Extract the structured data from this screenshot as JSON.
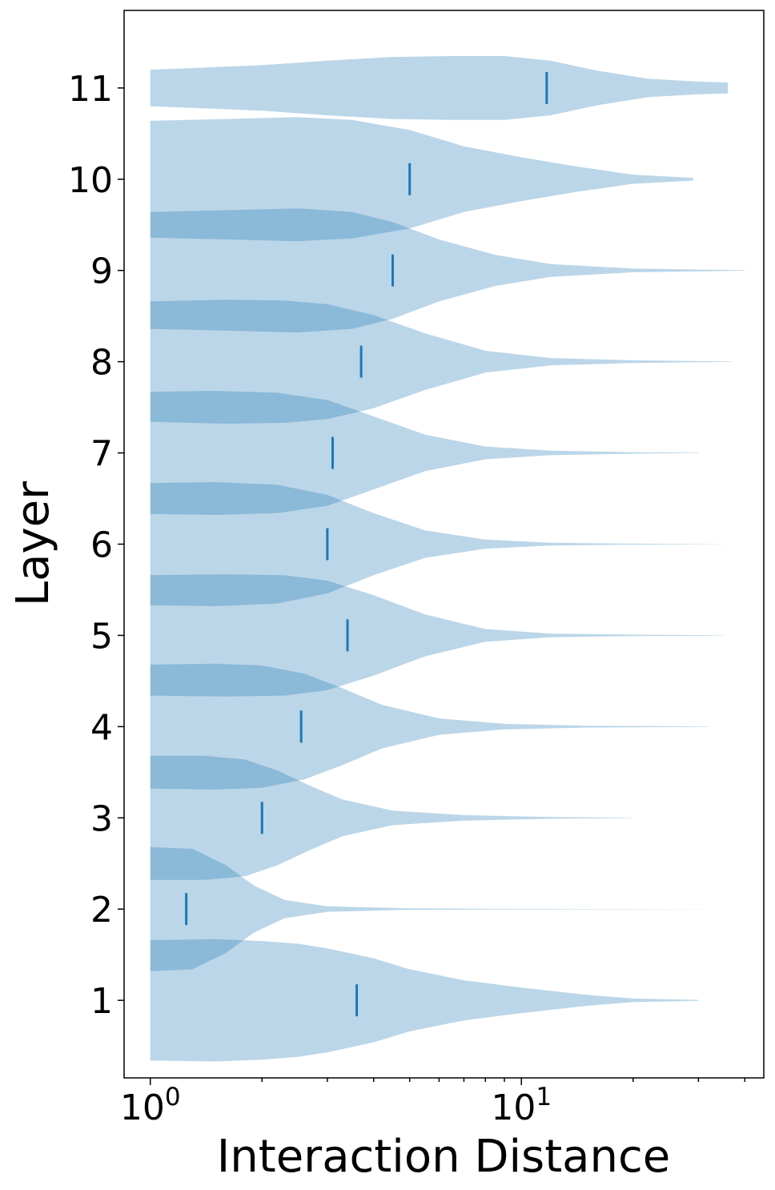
{
  "chart_data": {
    "type": "violin",
    "orientation": "horizontal",
    "xlabel": "Interaction Distance",
    "ylabel": "Layer",
    "x_scale": "log",
    "xlim": [
      0.85,
      45
    ],
    "ylim": [
      0.15,
      11.85
    ],
    "x_ticks": [
      {
        "value": 1,
        "base": "10",
        "exp": "0"
      },
      {
        "value": 10,
        "base": "10",
        "exp": "1"
      }
    ],
    "y_ticks": [
      "1",
      "2",
      "3",
      "4",
      "5",
      "6",
      "7",
      "8",
      "9",
      "10",
      "11"
    ],
    "color": "#1f77b4",
    "series": [
      {
        "layer": 1,
        "min": 1,
        "max": 30,
        "median": 3.6,
        "profile": [
          [
            1,
            0.66
          ],
          [
            1.5,
            0.67
          ],
          [
            2,
            0.65
          ],
          [
            2.5,
            0.62
          ],
          [
            3,
            0.57
          ],
          [
            4,
            0.46
          ],
          [
            5,
            0.34
          ],
          [
            7,
            0.22
          ],
          [
            10,
            0.14
          ],
          [
            15,
            0.06
          ],
          [
            20,
            0.02
          ],
          [
            30,
            0.005
          ]
        ]
      },
      {
        "layer": 2,
        "min": 1,
        "max": 31,
        "median": 1.25,
        "profile": [
          [
            1,
            0.68
          ],
          [
            1.3,
            0.66
          ],
          [
            1.6,
            0.48
          ],
          [
            1.9,
            0.26
          ],
          [
            2.3,
            0.1
          ],
          [
            3,
            0.03
          ],
          [
            5,
            0.008
          ],
          [
            10,
            0.003
          ],
          [
            31,
            0.001
          ]
        ]
      },
      {
        "layer": 3,
        "min": 1,
        "max": 20,
        "median": 2.0,
        "profile": [
          [
            1,
            0.68
          ],
          [
            1.4,
            0.68
          ],
          [
            1.8,
            0.64
          ],
          [
            2.2,
            0.52
          ],
          [
            2.7,
            0.35
          ],
          [
            3.3,
            0.2
          ],
          [
            4.5,
            0.08
          ],
          [
            7,
            0.03
          ],
          [
            12,
            0.01
          ],
          [
            20,
            0.002
          ]
        ]
      },
      {
        "layer": 4,
        "min": 1,
        "max": 32,
        "median": 2.55,
        "profile": [
          [
            1,
            0.68
          ],
          [
            1.5,
            0.69
          ],
          [
            2,
            0.67
          ],
          [
            2.6,
            0.58
          ],
          [
            3.3,
            0.42
          ],
          [
            4.2,
            0.24
          ],
          [
            6,
            0.09
          ],
          [
            9,
            0.03
          ],
          [
            15,
            0.01
          ],
          [
            32,
            0.002
          ]
        ]
      },
      {
        "layer": 5,
        "min": 1,
        "max": 35,
        "median": 3.4,
        "profile": [
          [
            1,
            0.66
          ],
          [
            1.6,
            0.67
          ],
          [
            2.3,
            0.66
          ],
          [
            3,
            0.6
          ],
          [
            4,
            0.44
          ],
          [
            5.5,
            0.23
          ],
          [
            8,
            0.07
          ],
          [
            12,
            0.02
          ],
          [
            20,
            0.008
          ],
          [
            35,
            0.002
          ]
        ]
      },
      {
        "layer": 6,
        "min": 1,
        "max": 35,
        "median": 3.0,
        "profile": [
          [
            1,
            0.67
          ],
          [
            1.5,
            0.68
          ],
          [
            2.2,
            0.65
          ],
          [
            3,
            0.54
          ],
          [
            4,
            0.34
          ],
          [
            5.5,
            0.15
          ],
          [
            8,
            0.05
          ],
          [
            12,
            0.015
          ],
          [
            20,
            0.005
          ],
          [
            35,
            0.001
          ]
        ]
      },
      {
        "layer": 7,
        "min": 1,
        "max": 30,
        "median": 3.1,
        "profile": [
          [
            1,
            0.67
          ],
          [
            1.5,
            0.68
          ],
          [
            2.2,
            0.66
          ],
          [
            3,
            0.58
          ],
          [
            4,
            0.4
          ],
          [
            5.5,
            0.2
          ],
          [
            8,
            0.07
          ],
          [
            12,
            0.025
          ],
          [
            20,
            0.008
          ],
          [
            30,
            0.002
          ]
        ]
      },
      {
        "layer": 8,
        "min": 1,
        "max": 37,
        "median": 3.7,
        "profile": [
          [
            1,
            0.66
          ],
          [
            1.6,
            0.68
          ],
          [
            2.3,
            0.67
          ],
          [
            3,
            0.63
          ],
          [
            4,
            0.51
          ],
          [
            5.5,
            0.31
          ],
          [
            8,
            0.12
          ],
          [
            12,
            0.04
          ],
          [
            20,
            0.015
          ],
          [
            37,
            0.002
          ]
        ]
      },
      {
        "layer": 9,
        "min": 1,
        "max": 40,
        "median": 4.5,
        "profile": [
          [
            1,
            0.64
          ],
          [
            1.6,
            0.66
          ],
          [
            2.5,
            0.68
          ],
          [
            3.5,
            0.64
          ],
          [
            4.5,
            0.53
          ],
          [
            6,
            0.34
          ],
          [
            8.5,
            0.17
          ],
          [
            12,
            0.07
          ],
          [
            20,
            0.02
          ],
          [
            40,
            0.003
          ]
        ]
      },
      {
        "layer": 10,
        "min": 1,
        "max": 29,
        "median": 5.0,
        "profile": [
          [
            1,
            0.64
          ],
          [
            1.6,
            0.66
          ],
          [
            2.5,
            0.68
          ],
          [
            3.5,
            0.65
          ],
          [
            5,
            0.54
          ],
          [
            7,
            0.36
          ],
          [
            10,
            0.24
          ],
          [
            14,
            0.14
          ],
          [
            20,
            0.05
          ],
          [
            29,
            0.015
          ]
        ]
      },
      {
        "layer": 11,
        "min": 1,
        "max": 36,
        "median": 11.7,
        "profile": [
          [
            1,
            0.2
          ],
          [
            2,
            0.25
          ],
          [
            3,
            0.3
          ],
          [
            4.5,
            0.34
          ],
          [
            6.5,
            0.35
          ],
          [
            9,
            0.35
          ],
          [
            12,
            0.3
          ],
          [
            16,
            0.19
          ],
          [
            22,
            0.1
          ],
          [
            30,
            0.07
          ],
          [
            36,
            0.06
          ]
        ]
      }
    ]
  }
}
